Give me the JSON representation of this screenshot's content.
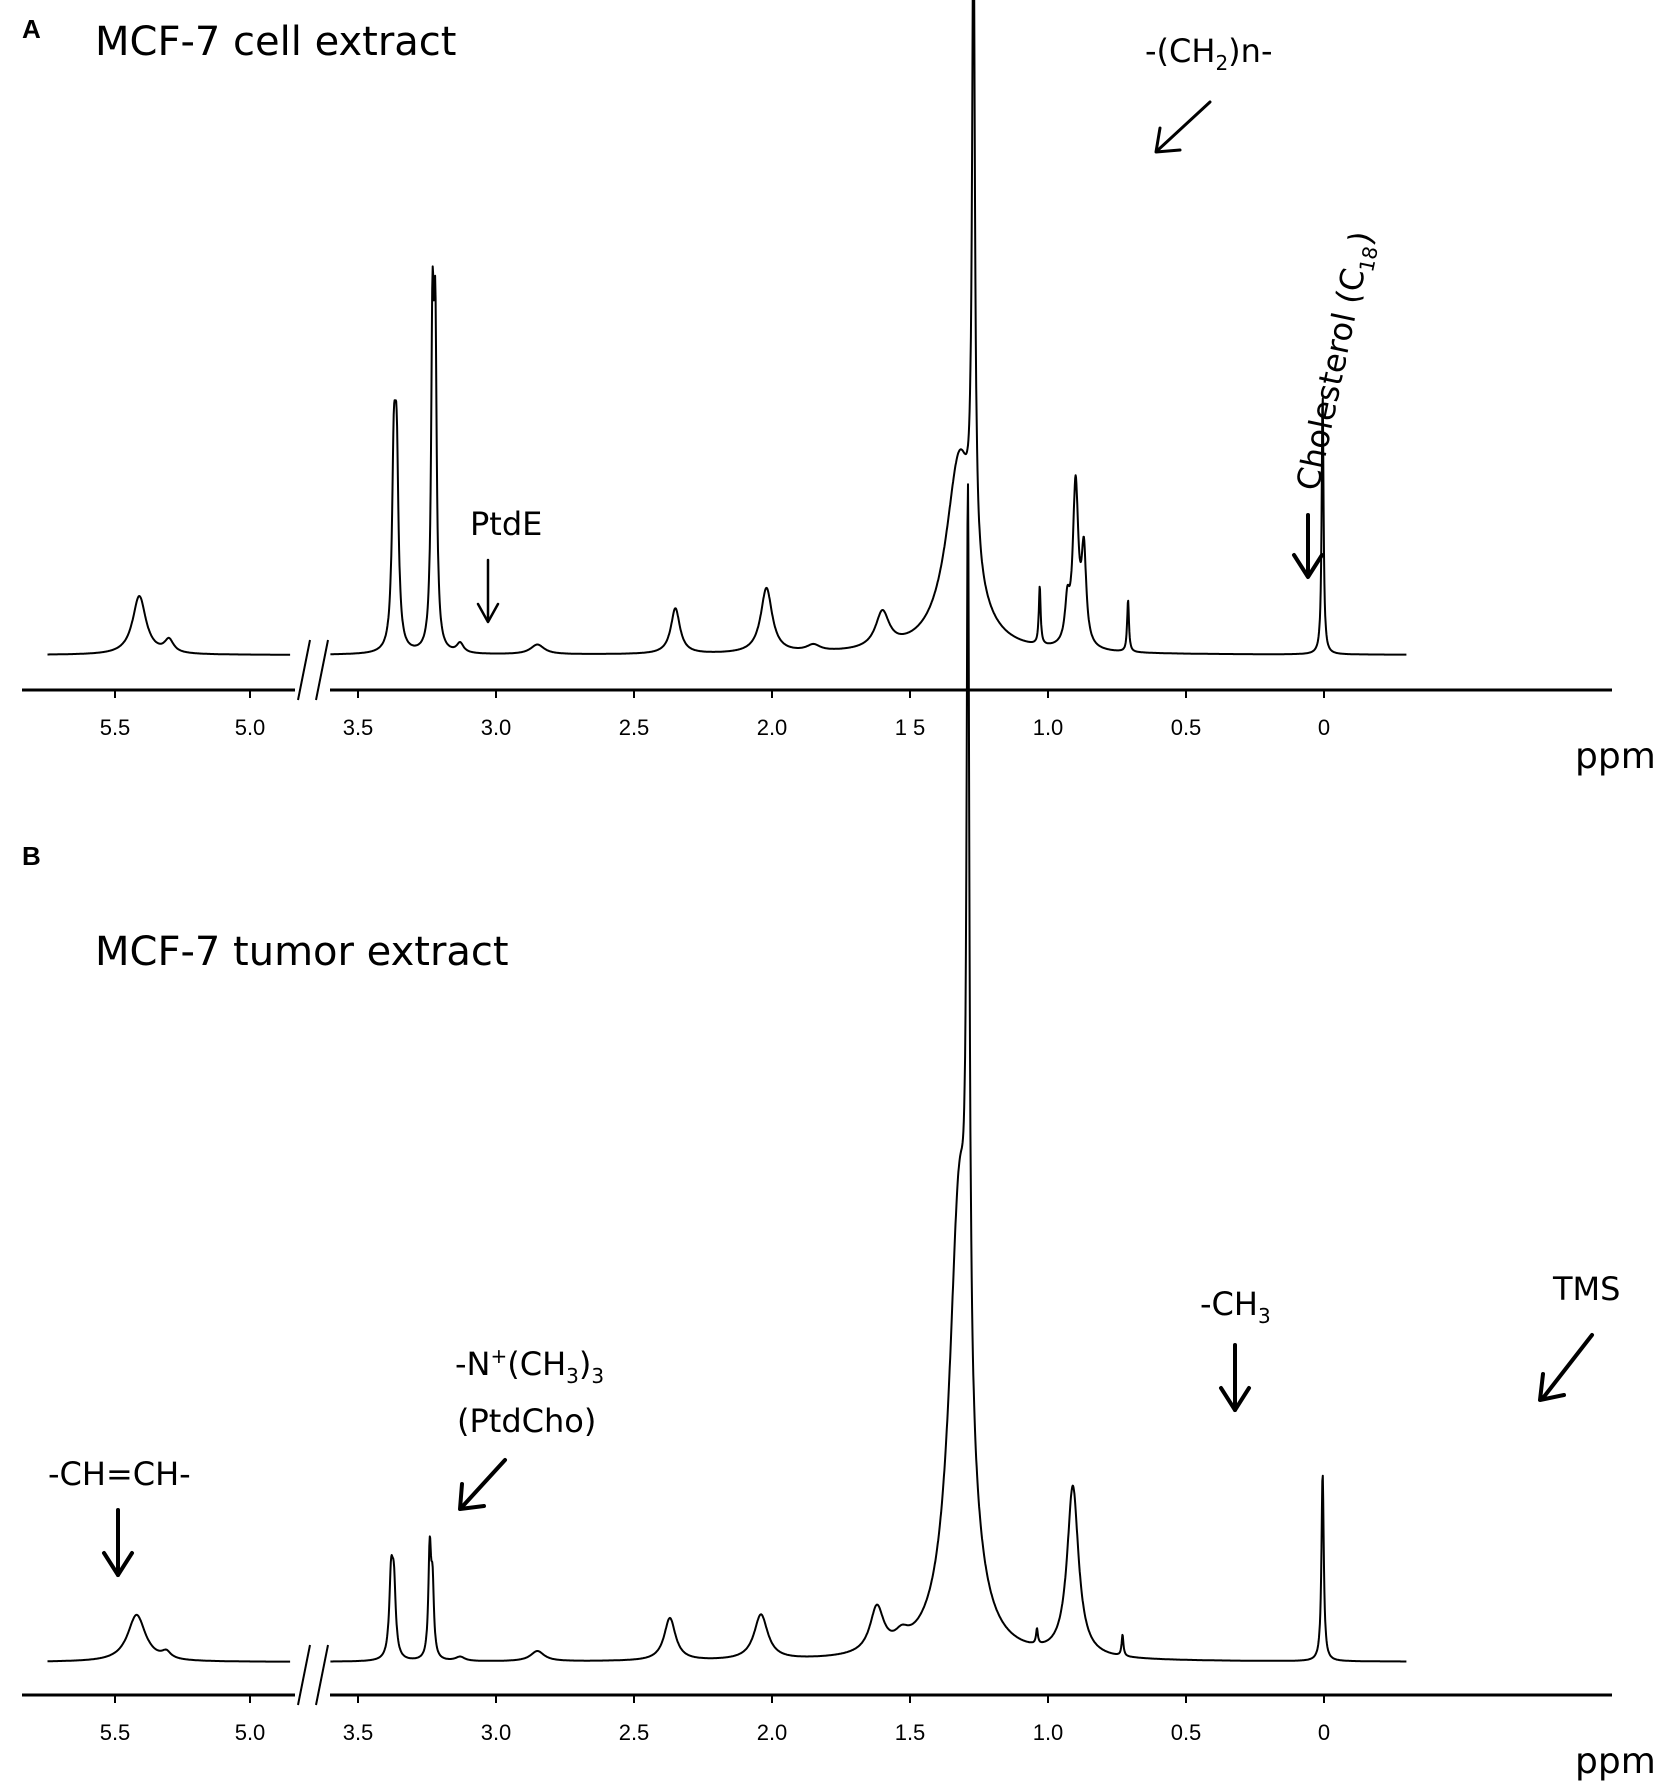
{
  "unit_label": "ppm",
  "chart_data": [
    {
      "type": "line",
      "panel": "A",
      "title": "MCF-7 cell extract",
      "x_ticks": [
        "5.5",
        "5.0",
        "3.5",
        "3.0",
        "2.5",
        "2.0",
        "1 5",
        "1.0",
        "0.5",
        "0"
      ],
      "xlabel": "ppm",
      "x_axis_reversed": true,
      "x_axis_break": [
        5.0,
        3.5
      ],
      "ylim": [
        0,
        100
      ],
      "peaks": [
        {
          "x": 5.41,
          "height": 9,
          "width": 0.03
        },
        {
          "x": 5.3,
          "height": 2,
          "width": 0.02
        },
        {
          "x": 3.37,
          "height": 27,
          "width": 0.008
        },
        {
          "x": 3.36,
          "height": 27,
          "width": 0.008
        },
        {
          "x": 3.23,
          "height": 47,
          "width": 0.006
        },
        {
          "x": 3.22,
          "height": 45,
          "width": 0.006
        },
        {
          "x": 3.13,
          "height": 1.5,
          "width": 0.015
        },
        {
          "x": 2.85,
          "height": 1.5,
          "width": 0.03
        },
        {
          "x": 2.35,
          "height": 7,
          "width": 0.02
        },
        {
          "x": 2.02,
          "height": 10,
          "width": 0.025
        },
        {
          "x": 1.85,
          "height": 1,
          "width": 0.03
        },
        {
          "x": 1.6,
          "height": 5.5,
          "width": 0.03
        },
        {
          "x": 1.32,
          "height": 30,
          "width": 0.06
        },
        {
          "x": 1.27,
          "height": 99,
          "width": 0.006
        },
        {
          "x": 1.03,
          "height": 9,
          "width": 0.004
        },
        {
          "x": 0.93,
          "height": 6,
          "width": 0.01
        },
        {
          "x": 0.9,
          "height": 25,
          "width": 0.012
        },
        {
          "x": 0.87,
          "height": 14,
          "width": 0.01
        },
        {
          "x": 0.71,
          "height": 8,
          "width": 0.004
        },
        {
          "x": 0.005,
          "height": 40,
          "width": 0.004
        }
      ],
      "annotations": [
        {
          "text": "PtdE",
          "x": 3.13
        },
        {
          "text": "-(CH",
          "sub": "2",
          "tail": ")n-",
          "x": 1.27
        },
        {
          "text": "Cholesterol (C",
          "sub": "18",
          "tail": ")",
          "x": 0.71
        }
      ]
    },
    {
      "type": "line",
      "panel": "B",
      "title": "MCF-7 tumor extract",
      "x_ticks": [
        "5.5",
        "5.0",
        "3.5",
        "3.0",
        "2.5",
        "2.0",
        "1.5",
        "1.0",
        "0.5",
        "0"
      ],
      "xlabel": "ppm",
      "x_axis_reversed": true,
      "x_axis_break": [
        5.0,
        3.5
      ],
      "ylim": [
        0,
        100
      ],
      "peaks": [
        {
          "x": 5.42,
          "height": 5.5,
          "width": 0.04
        },
        {
          "x": 5.31,
          "height": 0.8,
          "width": 0.02
        },
        {
          "x": 3.38,
          "height": 9,
          "width": 0.008
        },
        {
          "x": 3.37,
          "height": 8,
          "width": 0.008
        },
        {
          "x": 3.24,
          "height": 12.5,
          "width": 0.006
        },
        {
          "x": 3.23,
          "height": 8,
          "width": 0.006
        },
        {
          "x": 3.13,
          "height": 0.5,
          "width": 0.02
        },
        {
          "x": 2.85,
          "height": 1.2,
          "width": 0.03
        },
        {
          "x": 2.37,
          "height": 5,
          "width": 0.025
        },
        {
          "x": 2.04,
          "height": 5.3,
          "width": 0.03
        },
        {
          "x": 1.62,
          "height": 5.3,
          "width": 0.03
        },
        {
          "x": 1.53,
          "height": 1.3,
          "width": 0.03
        },
        {
          "x": 1.32,
          "height": 55,
          "width": 0.045
        },
        {
          "x": 1.29,
          "height": 100,
          "width": 0.006
        },
        {
          "x": 1.04,
          "height": 1.8,
          "width": 0.004
        },
        {
          "x": 0.91,
          "height": 20,
          "width": 0.025
        },
        {
          "x": 0.73,
          "height": 2.5,
          "width": 0.004
        },
        {
          "x": 0.005,
          "height": 22,
          "width": 0.005
        }
      ],
      "annotations": [
        {
          "text": "-CH=CH-",
          "x": 5.42
        },
        {
          "text": "-N",
          "sup": "+",
          "mid": "(CH",
          "sub": "3",
          "tail": ")",
          "sub2": "3",
          "line2": "(PtdCho)",
          "x": 3.24
        },
        {
          "text": "-CH",
          "sub": "3",
          "x": 0.91
        },
        {
          "text": "TMS",
          "x": 0.0
        }
      ]
    }
  ]
}
